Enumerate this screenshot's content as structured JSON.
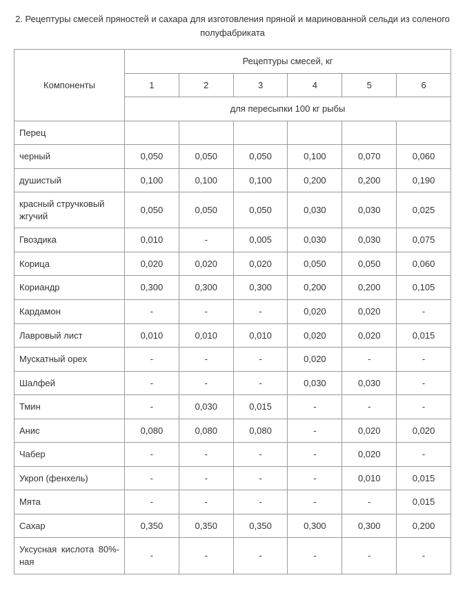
{
  "title": "2. Рецептуры смесей пряностей и сахара для изготовления пряной и маринованной сельди из соленого полуфабриката",
  "table": {
    "corner_header": "Компоненты",
    "group_header": "Рецептуры смесей, кг",
    "sub_header": "для пересыпки 100 кг рыбы",
    "col_nums": [
      "1",
      "2",
      "3",
      "4",
      "5",
      "6"
    ],
    "rows": [
      {
        "label": "Перец",
        "vals": [
          "",
          "",
          "",
          "",
          "",
          ""
        ]
      },
      {
        "label": "черный",
        "vals": [
          "0,050",
          "0,050",
          "0,050",
          "0,100",
          "0,070",
          "0,060"
        ]
      },
      {
        "label": "душистый",
        "vals": [
          "0,100",
          "0,100",
          "0,100",
          "0,200",
          "0,200",
          "0,190"
        ]
      },
      {
        "label": "красный стручковый жгучий",
        "vals": [
          "0,050",
          "0,050",
          "0,050",
          "0,030",
          "0,030",
          "0,025"
        ]
      },
      {
        "label": "Гвоздика",
        "vals": [
          "0,010",
          "-",
          "0,005",
          "0,030",
          "0,030",
          "0,075"
        ]
      },
      {
        "label": "Корица",
        "vals": [
          "0,020",
          "0,020",
          "0,020",
          "0,050",
          "0,050",
          "0,060"
        ]
      },
      {
        "label": "Кориандр",
        "vals": [
          "0,300",
          "0,300",
          "0,300",
          "0,200",
          "0,200",
          "0,105"
        ]
      },
      {
        "label": "Кардамон",
        "vals": [
          "-",
          "-",
          "-",
          "0,020",
          "0,020",
          "-"
        ]
      },
      {
        "label": "Лавровый лист",
        "vals": [
          "0,010",
          "0,010",
          "0,010",
          "0,020",
          "0,020",
          "0,015"
        ]
      },
      {
        "label": "Мускатный орех",
        "vals": [
          "-",
          "-",
          "-",
          "0,020",
          "-",
          "-"
        ]
      },
      {
        "label": "Шалфей",
        "vals": [
          "-",
          "-",
          "-",
          "0,030",
          "0,030",
          "-"
        ]
      },
      {
        "label": "Тмин",
        "vals": [
          "-",
          "0,030",
          "0,015",
          "-",
          "-",
          "-"
        ]
      },
      {
        "label": "Анис",
        "vals": [
          "0,080",
          "0,080",
          "0,080",
          "-",
          "0,020",
          "0,020"
        ]
      },
      {
        "label": "Чабер",
        "vals": [
          "-",
          "-",
          "-",
          "-",
          "0,020",
          "-"
        ]
      },
      {
        "label": "Укроп (фенхель)",
        "vals": [
          "-",
          "-",
          "-",
          "-",
          "0,010",
          "0,015"
        ]
      },
      {
        "label": "Мята",
        "vals": [
          "-",
          "-",
          "-",
          "-",
          "-",
          "0,015"
        ]
      },
      {
        "label": "Сахар",
        "vals": [
          "0,350",
          "0,350",
          "0,350",
          "0,300",
          "0,300",
          "0,200"
        ]
      },
      {
        "label": "Уксусная кислота 80%-ная",
        "vals": [
          "-",
          "-",
          "-",
          "-",
          "-",
          "-"
        ],
        "justify": true
      }
    ]
  }
}
